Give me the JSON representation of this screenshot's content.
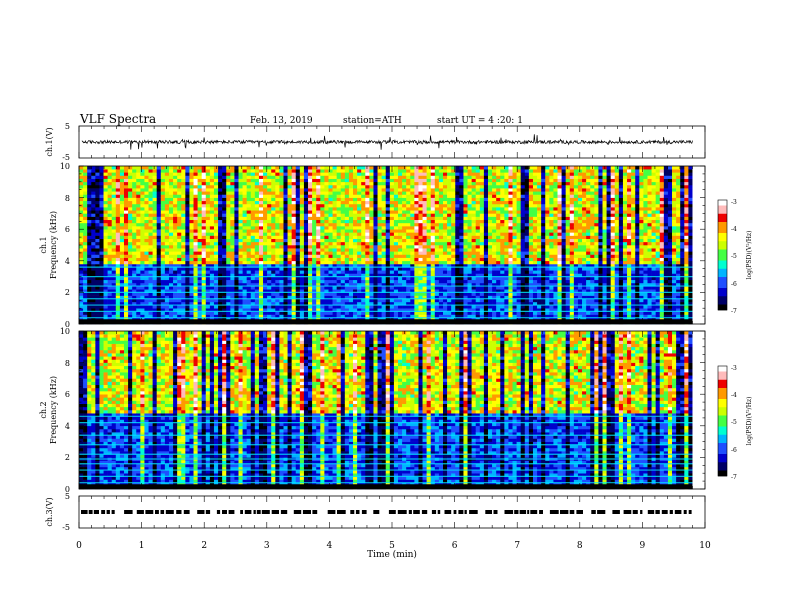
{
  "header": {
    "title": "VLF Spectra",
    "date": "Feb. 13, 2019",
    "station": "station=ATH",
    "start_ut": "start UT =  4 :20: 1"
  },
  "colors": {
    "spectrum": [
      "#000000",
      "#000066",
      "#0000cc",
      "#1f4fff",
      "#00b4ff",
      "#00ffd0",
      "#44ff44",
      "#ccff00",
      "#ffff00",
      "#ff9900",
      "#ee0000",
      "#ffbbbb",
      "#ffffff"
    ],
    "trace": "#000000",
    "axis": "#000000"
  },
  "chart_data": {
    "type": "heatmap",
    "xlabel": "Time (min)",
    "xlim": [
      0,
      10
    ],
    "x_ticks": [
      "0",
      "1",
      "2",
      "3",
      "4",
      "5",
      "6",
      "7",
      "8",
      "9",
      "10"
    ],
    "data_end_min": 9.8,
    "panels": [
      {
        "id": "ch1v",
        "kind": "trace",
        "ylabel": "ch.1(V)",
        "ylim": [
          -5,
          5
        ],
        "y_ticks": [
          "5",
          "-5"
        ],
        "baseline_v": 0.0,
        "noise_v": 1.0
      },
      {
        "id": "ch1spec",
        "kind": "spectrogram",
        "ylabel_1": "ch.1",
        "ylabel_2": "Frequency (kHz)",
        "ylim": [
          0,
          10
        ],
        "y_ticks": [
          "0",
          "2",
          "4",
          "6",
          "8",
          "10"
        ],
        "colorbar": {
          "label": "log(PSD)(V²/Hz)",
          "range": [
            -7,
            -3
          ],
          "ticks": [
            "-3",
            "-4",
            "-5",
            "-6",
            "-7"
          ]
        },
        "bands_khz": [
          0.4,
          0.8,
          1.2,
          1.6,
          2.0,
          2.4,
          3.0,
          3.6
        ],
        "noise_floor_khz": 3.8
      },
      {
        "id": "ch2spec",
        "kind": "spectrogram",
        "ylabel_1": "ch.2",
        "ylabel_2": "Frequency (kHz)",
        "ylim": [
          0,
          10
        ],
        "y_ticks": [
          "0",
          "2",
          "4",
          "6",
          "8",
          "10"
        ],
        "colorbar": {
          "label": "log(PSD)(V²/Hz)",
          "range": [
            -7,
            -3
          ],
          "ticks": [
            "-3",
            "-4",
            "-5",
            "-6",
            "-7"
          ]
        },
        "bands_khz": [
          0.4,
          0.8,
          1.2,
          1.6,
          1.9,
          2.2,
          2.8,
          3.4,
          4.2,
          4.6
        ],
        "noise_floor_khz": 4.8
      },
      {
        "id": "ch3v",
        "kind": "pulses",
        "ylabel": "ch.3(V)",
        "ylim": [
          -5,
          5
        ],
        "y_ticks": [
          "5",
          "-5"
        ],
        "level_v": 0.0
      }
    ]
  }
}
